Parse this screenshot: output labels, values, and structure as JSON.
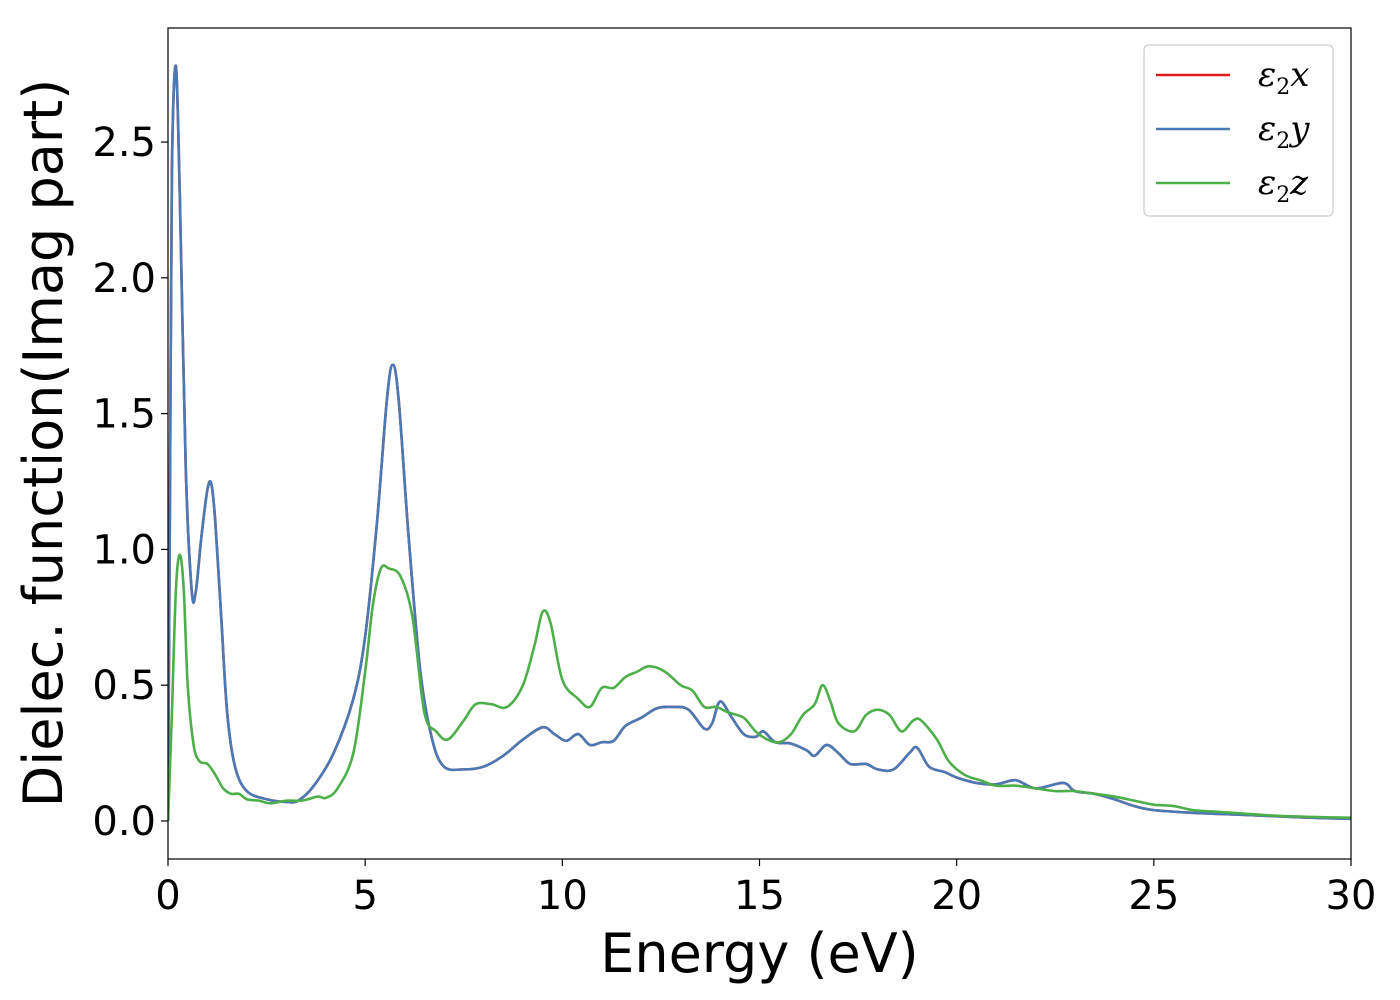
{
  "chart_data": {
    "type": "line",
    "title": "",
    "xlabel": "Energy (eV)",
    "ylabel": "Dielec. function(Imag part)",
    "xlim": [
      0,
      30
    ],
    "ylim": [
      -0.14,
      2.92
    ],
    "xticks": [
      0,
      5,
      10,
      15,
      20,
      25,
      30
    ],
    "xtick_labels": [
      "0",
      "5",
      "10",
      "15",
      "20",
      "25",
      "30"
    ],
    "yticks": [
      0.0,
      0.5,
      1.0,
      1.5,
      2.0,
      2.5
    ],
    "ytick_labels": [
      "0.0",
      "0.5",
      "1.0",
      "1.5",
      "2.0",
      "2.5"
    ],
    "grid": false,
    "legend_position": "top-right",
    "series": [
      {
        "name": "ε2x",
        "legend_main": "ε",
        "legend_sub": "2",
        "legend_var": "x",
        "color": "#e41a1c",
        "points": [
          [
            0,
            0.0
          ],
          [
            0.05,
            1.2
          ],
          [
            0.1,
            2.4
          ],
          [
            0.2,
            2.78
          ],
          [
            0.3,
            2.3
          ],
          [
            0.45,
            1.3
          ],
          [
            0.6,
            0.85
          ],
          [
            0.7,
            0.84
          ],
          [
            0.85,
            1.05
          ],
          [
            1.0,
            1.22
          ],
          [
            1.1,
            1.24
          ],
          [
            1.2,
            1.1
          ],
          [
            1.35,
            0.75
          ],
          [
            1.5,
            0.4
          ],
          [
            1.7,
            0.2
          ],
          [
            2.0,
            0.11
          ],
          [
            2.5,
            0.08
          ],
          [
            3.0,
            0.07
          ],
          [
            3.3,
            0.075
          ],
          [
            3.7,
            0.13
          ],
          [
            4.2,
            0.25
          ],
          [
            4.7,
            0.45
          ],
          [
            5.0,
            0.68
          ],
          [
            5.3,
            1.1
          ],
          [
            5.55,
            1.55
          ],
          [
            5.7,
            1.68
          ],
          [
            5.85,
            1.55
          ],
          [
            6.1,
            1.05
          ],
          [
            6.4,
            0.55
          ],
          [
            6.7,
            0.3
          ],
          [
            7.0,
            0.2
          ],
          [
            7.5,
            0.19
          ],
          [
            8.0,
            0.2
          ],
          [
            8.5,
            0.24
          ],
          [
            9.0,
            0.3
          ],
          [
            9.5,
            0.345
          ],
          [
            9.8,
            0.32
          ],
          [
            10.1,
            0.295
          ],
          [
            10.4,
            0.32
          ],
          [
            10.7,
            0.28
          ],
          [
            11.0,
            0.29
          ],
          [
            11.3,
            0.295
          ],
          [
            11.6,
            0.35
          ],
          [
            12.0,
            0.38
          ],
          [
            12.4,
            0.415
          ],
          [
            12.8,
            0.42
          ],
          [
            13.2,
            0.41
          ],
          [
            13.6,
            0.34
          ],
          [
            13.8,
            0.36
          ],
          [
            14.0,
            0.44
          ],
          [
            14.3,
            0.38
          ],
          [
            14.6,
            0.32
          ],
          [
            14.9,
            0.31
          ],
          [
            15.1,
            0.33
          ],
          [
            15.4,
            0.29
          ],
          [
            15.8,
            0.285
          ],
          [
            16.2,
            0.26
          ],
          [
            16.4,
            0.24
          ],
          [
            16.7,
            0.28
          ],
          [
            17.0,
            0.25
          ],
          [
            17.3,
            0.21
          ],
          [
            17.7,
            0.21
          ],
          [
            18.0,
            0.19
          ],
          [
            18.4,
            0.19
          ],
          [
            18.8,
            0.25
          ],
          [
            19.0,
            0.27
          ],
          [
            19.3,
            0.2
          ],
          [
            19.7,
            0.18
          ],
          [
            20.0,
            0.16
          ],
          [
            20.5,
            0.14
          ],
          [
            21.0,
            0.135
          ],
          [
            21.5,
            0.15
          ],
          [
            22.0,
            0.12
          ],
          [
            22.7,
            0.14
          ],
          [
            23.0,
            0.11
          ],
          [
            23.5,
            0.1
          ],
          [
            24.0,
            0.08
          ],
          [
            24.5,
            0.055
          ],
          [
            25.0,
            0.04
          ],
          [
            26.0,
            0.03
          ],
          [
            27.0,
            0.024
          ],
          [
            28.0,
            0.018
          ],
          [
            29.0,
            0.012
          ],
          [
            30.0,
            0.008
          ]
        ]
      },
      {
        "name": "ε2y",
        "legend_main": "ε",
        "legend_sub": "2",
        "legend_var": "y",
        "color": "#4a7ab5",
        "points": [
          [
            0,
            0.0
          ],
          [
            0.05,
            1.2
          ],
          [
            0.1,
            2.4
          ],
          [
            0.2,
            2.78
          ],
          [
            0.3,
            2.3
          ],
          [
            0.45,
            1.3
          ],
          [
            0.6,
            0.85
          ],
          [
            0.7,
            0.84
          ],
          [
            0.85,
            1.05
          ],
          [
            1.0,
            1.22
          ],
          [
            1.1,
            1.24
          ],
          [
            1.2,
            1.1
          ],
          [
            1.35,
            0.75
          ],
          [
            1.5,
            0.4
          ],
          [
            1.7,
            0.2
          ],
          [
            2.0,
            0.11
          ],
          [
            2.5,
            0.08
          ],
          [
            3.0,
            0.07
          ],
          [
            3.3,
            0.075
          ],
          [
            3.7,
            0.13
          ],
          [
            4.2,
            0.25
          ],
          [
            4.7,
            0.45
          ],
          [
            5.0,
            0.68
          ],
          [
            5.3,
            1.1
          ],
          [
            5.55,
            1.55
          ],
          [
            5.7,
            1.68
          ],
          [
            5.85,
            1.55
          ],
          [
            6.1,
            1.05
          ],
          [
            6.4,
            0.55
          ],
          [
            6.7,
            0.3
          ],
          [
            7.0,
            0.2
          ],
          [
            7.5,
            0.19
          ],
          [
            8.0,
            0.2
          ],
          [
            8.5,
            0.24
          ],
          [
            9.0,
            0.3
          ],
          [
            9.5,
            0.345
          ],
          [
            9.8,
            0.32
          ],
          [
            10.1,
            0.295
          ],
          [
            10.4,
            0.32
          ],
          [
            10.7,
            0.28
          ],
          [
            11.0,
            0.29
          ],
          [
            11.3,
            0.295
          ],
          [
            11.6,
            0.35
          ],
          [
            12.0,
            0.38
          ],
          [
            12.4,
            0.415
          ],
          [
            12.8,
            0.42
          ],
          [
            13.2,
            0.41
          ],
          [
            13.6,
            0.34
          ],
          [
            13.8,
            0.36
          ],
          [
            14.0,
            0.44
          ],
          [
            14.3,
            0.38
          ],
          [
            14.6,
            0.32
          ],
          [
            14.9,
            0.31
          ],
          [
            15.1,
            0.33
          ],
          [
            15.4,
            0.29
          ],
          [
            15.8,
            0.285
          ],
          [
            16.2,
            0.26
          ],
          [
            16.4,
            0.24
          ],
          [
            16.7,
            0.28
          ],
          [
            17.0,
            0.25
          ],
          [
            17.3,
            0.21
          ],
          [
            17.7,
            0.21
          ],
          [
            18.0,
            0.19
          ],
          [
            18.4,
            0.19
          ],
          [
            18.8,
            0.25
          ],
          [
            19.0,
            0.27
          ],
          [
            19.3,
            0.2
          ],
          [
            19.7,
            0.18
          ],
          [
            20.0,
            0.16
          ],
          [
            20.5,
            0.14
          ],
          [
            21.0,
            0.135
          ],
          [
            21.5,
            0.15
          ],
          [
            22.0,
            0.12
          ],
          [
            22.7,
            0.14
          ],
          [
            23.0,
            0.11
          ],
          [
            23.5,
            0.1
          ],
          [
            24.0,
            0.08
          ],
          [
            24.5,
            0.055
          ],
          [
            25.0,
            0.04
          ],
          [
            26.0,
            0.03
          ],
          [
            27.0,
            0.024
          ],
          [
            28.0,
            0.018
          ],
          [
            29.0,
            0.012
          ],
          [
            30.0,
            0.008
          ]
        ]
      },
      {
        "name": "ε2z",
        "legend_main": "ε",
        "legend_sub": "2",
        "legend_var": "z",
        "color": "#4daf4a",
        "points": [
          [
            0,
            0.0
          ],
          [
            0.1,
            0.4
          ],
          [
            0.2,
            0.85
          ],
          [
            0.3,
            0.98
          ],
          [
            0.4,
            0.85
          ],
          [
            0.5,
            0.5
          ],
          [
            0.65,
            0.28
          ],
          [
            0.8,
            0.22
          ],
          [
            1.0,
            0.21
          ],
          [
            1.2,
            0.17
          ],
          [
            1.4,
            0.12
          ],
          [
            1.6,
            0.1
          ],
          [
            1.8,
            0.1
          ],
          [
            2.0,
            0.08
          ],
          [
            2.3,
            0.075
          ],
          [
            2.6,
            0.065
          ],
          [
            3.0,
            0.075
          ],
          [
            3.4,
            0.075
          ],
          [
            3.8,
            0.09
          ],
          [
            4.0,
            0.085
          ],
          [
            4.3,
            0.12
          ],
          [
            4.7,
            0.25
          ],
          [
            5.0,
            0.55
          ],
          [
            5.2,
            0.8
          ],
          [
            5.4,
            0.93
          ],
          [
            5.6,
            0.93
          ],
          [
            5.9,
            0.9
          ],
          [
            6.2,
            0.75
          ],
          [
            6.5,
            0.4
          ],
          [
            6.8,
            0.33
          ],
          [
            7.1,
            0.3
          ],
          [
            7.5,
            0.37
          ],
          [
            7.8,
            0.43
          ],
          [
            8.2,
            0.43
          ],
          [
            8.6,
            0.42
          ],
          [
            9.0,
            0.5
          ],
          [
            9.3,
            0.65
          ],
          [
            9.5,
            0.77
          ],
          [
            9.7,
            0.73
          ],
          [
            10.0,
            0.52
          ],
          [
            10.4,
            0.45
          ],
          [
            10.7,
            0.42
          ],
          [
            11.0,
            0.49
          ],
          [
            11.3,
            0.49
          ],
          [
            11.6,
            0.53
          ],
          [
            11.9,
            0.55
          ],
          [
            12.2,
            0.57
          ],
          [
            12.6,
            0.55
          ],
          [
            13.0,
            0.5
          ],
          [
            13.3,
            0.48
          ],
          [
            13.6,
            0.42
          ],
          [
            13.9,
            0.42
          ],
          [
            14.2,
            0.4
          ],
          [
            14.6,
            0.38
          ],
          [
            14.9,
            0.33
          ],
          [
            15.2,
            0.3
          ],
          [
            15.5,
            0.29
          ],
          [
            15.8,
            0.32
          ],
          [
            16.1,
            0.39
          ],
          [
            16.4,
            0.43
          ],
          [
            16.6,
            0.5
          ],
          [
            16.8,
            0.44
          ],
          [
            17.0,
            0.36
          ],
          [
            17.4,
            0.33
          ],
          [
            17.7,
            0.39
          ],
          [
            18.0,
            0.41
          ],
          [
            18.3,
            0.39
          ],
          [
            18.6,
            0.33
          ],
          [
            18.9,
            0.37
          ],
          [
            19.1,
            0.37
          ],
          [
            19.5,
            0.3
          ],
          [
            19.8,
            0.22
          ],
          [
            20.2,
            0.17
          ],
          [
            20.6,
            0.15
          ],
          [
            21.0,
            0.13
          ],
          [
            21.5,
            0.13
          ],
          [
            22.0,
            0.12
          ],
          [
            22.5,
            0.11
          ],
          [
            23.0,
            0.11
          ],
          [
            23.5,
            0.1
          ],
          [
            24.0,
            0.09
          ],
          [
            24.5,
            0.075
          ],
          [
            25.0,
            0.06
          ],
          [
            25.5,
            0.055
          ],
          [
            26.0,
            0.04
          ],
          [
            26.5,
            0.035
          ],
          [
            27.0,
            0.03
          ],
          [
            28.0,
            0.02
          ],
          [
            29.0,
            0.015
          ],
          [
            30.0,
            0.012
          ]
        ]
      }
    ]
  }
}
